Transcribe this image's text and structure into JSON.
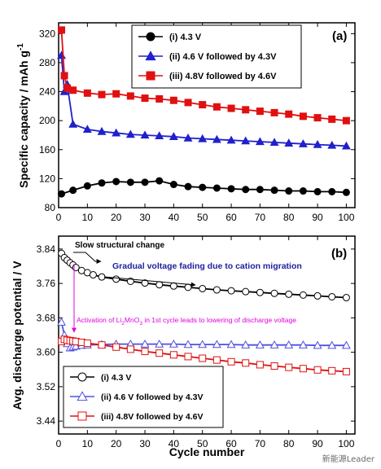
{
  "chart_data": [
    {
      "type": "scatter",
      "panel_label": "(a)",
      "xlabel": "",
      "ylabel": "Specific capacity / mAh g",
      "ylabel_superscript": "-1",
      "xlim": [
        0,
        103
      ],
      "ylim": [
        80,
        335
      ],
      "xticks": [
        0,
        10,
        20,
        30,
        40,
        50,
        60,
        70,
        80,
        90,
        100
      ],
      "yticks": [
        80,
        120,
        160,
        200,
        240,
        280,
        320
      ],
      "legend_position": "top-right",
      "series": [
        {
          "name": "(i) 4.3 V",
          "color": "#000000",
          "marker": "filled-circle",
          "x": [
            1,
            5,
            10,
            15,
            20,
            25,
            30,
            35,
            40,
            45,
            50,
            55,
            60,
            65,
            70,
            75,
            80,
            85,
            90,
            95,
            100
          ],
          "y": [
            99,
            104,
            110,
            114,
            116,
            115,
            115,
            117,
            112,
            109,
            108,
            107,
            106,
            105,
            105,
            104,
            103,
            103,
            102,
            102,
            101
          ]
        },
        {
          "name": "(ii) 4.6 V followed by 4.3V",
          "color": "#2020cc",
          "marker": "filled-triangle",
          "x": [
            1,
            2,
            3,
            5,
            10,
            15,
            20,
            25,
            30,
            35,
            40,
            45,
            50,
            55,
            60,
            65,
            70,
            75,
            80,
            85,
            90,
            95,
            100
          ],
          "y": [
            290,
            240,
            250,
            195,
            188,
            185,
            183,
            181,
            180,
            179,
            178,
            176,
            175,
            174,
            173,
            172,
            171,
            170,
            169,
            168,
            167,
            166,
            165
          ]
        },
        {
          "name": "(iii) 4.8V followed by 4.6V",
          "color": "#e01010",
          "marker": "filled-square",
          "x": [
            1,
            2,
            3,
            5,
            10,
            15,
            20,
            25,
            30,
            35,
            40,
            45,
            50,
            55,
            60,
            65,
            70,
            75,
            80,
            85,
            90,
            95,
            100
          ],
          "y": [
            325,
            262,
            245,
            242,
            238,
            236,
            237,
            234,
            231,
            230,
            228,
            225,
            222,
            219,
            217,
            215,
            213,
            211,
            209,
            206,
            204,
            202,
            200
          ]
        }
      ]
    },
    {
      "type": "scatter",
      "panel_label": "(b)",
      "xlabel": "Cycle number",
      "ylabel": "Avg. discharge potential / V",
      "xlim": [
        0,
        103
      ],
      "ylim": [
        3.41,
        3.87
      ],
      "xticks": [
        0,
        10,
        20,
        30,
        40,
        50,
        60,
        70,
        80,
        90,
        100
      ],
      "yticks": [
        3.44,
        3.52,
        3.6,
        3.68,
        3.76,
        3.84
      ],
      "legend_position": "bottom-left",
      "annotations": [
        "Slow structural change",
        "Gradual voltage fading due to cation migration",
        "Activation of Li",
        "2",
        "MnO",
        "3",
        " in 1st cycle leads to lowering of discharge voltage"
      ],
      "series": [
        {
          "name": "(i) 4.3 V",
          "color": "#000000",
          "marker": "open-circle",
          "x": [
            1,
            2,
            3,
            4,
            5,
            6,
            8,
            10,
            12,
            15,
            20,
            25,
            30,
            35,
            40,
            45,
            50,
            55,
            60,
            65,
            70,
            75,
            80,
            85,
            90,
            95,
            100
          ],
          "y": [
            3.83,
            3.82,
            3.814,
            3.808,
            3.803,
            3.797,
            3.79,
            3.785,
            3.78,
            3.775,
            3.77,
            3.765,
            3.761,
            3.757,
            3.754,
            3.751,
            3.748,
            3.745,
            3.743,
            3.741,
            3.739,
            3.737,
            3.735,
            3.733,
            3.731,
            3.729,
            3.727
          ]
        },
        {
          "name": "(ii) 4.6 V followed by 4.3V",
          "color": "#5050e0",
          "marker": "open-triangle",
          "x": [
            1,
            2,
            3,
            4,
            5,
            6,
            8,
            10,
            15,
            20,
            25,
            30,
            35,
            40,
            45,
            50,
            55,
            60,
            65,
            70,
            75,
            80,
            85,
            90,
            95,
            100
          ],
          "y": [
            3.67,
            3.64,
            3.62,
            3.61,
            3.612,
            3.614,
            3.616,
            3.617,
            3.618,
            3.619,
            3.619,
            3.619,
            3.619,
            3.619,
            3.618,
            3.618,
            3.618,
            3.618,
            3.617,
            3.617,
            3.617,
            3.617,
            3.617,
            3.616,
            3.616,
            3.616
          ]
        },
        {
          "name": "(iii) 4.8V followed by 4.6V",
          "color": "#e01010",
          "marker": "open-square",
          "x": [
            1,
            2,
            3,
            4,
            5,
            6,
            8,
            10,
            15,
            20,
            25,
            30,
            35,
            40,
            45,
            50,
            55,
            60,
            65,
            70,
            75,
            80,
            85,
            90,
            95,
            100
          ],
          "y": [
            3.625,
            3.63,
            3.628,
            3.627,
            3.626,
            3.625,
            3.623,
            3.621,
            3.617,
            3.612,
            3.607,
            3.602,
            3.598,
            3.594,
            3.59,
            3.586,
            3.582,
            3.578,
            3.575,
            3.571,
            3.568,
            3.565,
            3.562,
            3.559,
            3.557,
            3.555
          ]
        }
      ]
    }
  ],
  "watermark": "新能源Leader"
}
